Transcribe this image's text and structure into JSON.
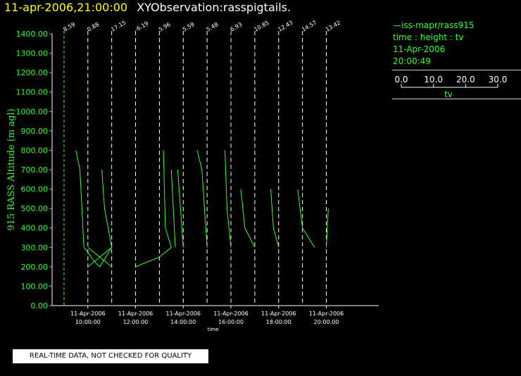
{
  "header": {
    "timestamp": "11-apr-2006,21:00:00",
    "title": "XYObservation:rasspigtails."
  },
  "legend": {
    "line1": "iss-mapr/rass915",
    "line2": "time : height : tv",
    "line3": "11-Apr-2006",
    "line4": "20:00:49",
    "scale_ticks": [
      "0.0",
      "10.0",
      "20.0",
      "30.0"
    ],
    "scale_label": "tv"
  },
  "disclaimer": "REAL-TIME DATA, NOT CHECKED FOR QUALITY",
  "colors": {
    "background": "#000000",
    "trace": "#33ff33",
    "axes": "#ffffff",
    "title_time": "#ffff00"
  },
  "chart_data": {
    "type": "line",
    "ylabel": "915 RASS Altitude (m agl)",
    "xlabel": "time",
    "ylim": [
      0,
      1400
    ],
    "yticks": [
      "0.00",
      "100.00",
      "200.00",
      "300.00",
      "400.00",
      "500.00",
      "600.00",
      "700.00",
      "800.00",
      "900.00",
      "1000.00",
      "1100.00",
      "1200.00",
      "1300.00",
      "1400.00"
    ],
    "xticks": [
      {
        "date": "11-Apr-2006",
        "time": "10:00:00"
      },
      {
        "date": "11-Apr-2006",
        "time": "12:00:00"
      },
      {
        "date": "11-Apr-2006",
        "time": "14:00:00"
      },
      {
        "date": "11-Apr-2006",
        "time": "16:00:00"
      },
      {
        "date": "11-Apr-2006",
        "time": "18:00:00"
      },
      {
        "date": "11-Apr-2006",
        "time": "20:00:00"
      }
    ],
    "profiles": [
      {
        "time": "09:00",
        "label": "8.59"
      },
      {
        "time": "10:00",
        "label": "0.88"
      },
      {
        "time": "11:00",
        "label": "17.15"
      },
      {
        "time": "12:00",
        "label": "-6.19"
      },
      {
        "time": "13:00",
        "label": "5.96"
      },
      {
        "time": "14:00",
        "label": "5.59"
      },
      {
        "time": "15:00",
        "label": "5.48"
      },
      {
        "time": "16:00",
        "label": "6.93"
      },
      {
        "time": "17:00",
        "label": "10.85"
      },
      {
        "time": "18:00",
        "label": "12.43"
      },
      {
        "time": "19:00",
        "label": "14.57"
      },
      {
        "time": "20:00",
        "label": "13.42"
      }
    ],
    "series": [
      {
        "points": [
          [
            "09:30",
            800
          ],
          [
            "09:40",
            700
          ],
          [
            "09:50",
            300
          ],
          [
            "10:00",
            275
          ],
          [
            "10:15",
            230
          ],
          [
            "10:30",
            200
          ],
          [
            "11:00",
            300
          ],
          [
            "10:42",
            500
          ],
          [
            "10:35",
            700
          ]
        ]
      },
      {
        "points": [
          [
            "10:00",
            200
          ],
          [
            "10:30",
            250
          ],
          [
            "11:00",
            300
          ]
        ]
      },
      {
        "points": [
          [
            "10:00",
            300
          ],
          [
            "10:30",
            250
          ],
          [
            "11:00",
            200
          ]
        ]
      },
      {
        "points": [
          [
            "12:00",
            200
          ],
          [
            "13:00",
            250
          ],
          [
            "13:30",
            300
          ],
          [
            "13:15",
            400
          ],
          [
            "13:10",
            800
          ]
        ]
      },
      {
        "points": [
          [
            "13:30",
            700
          ],
          [
            "13:40",
            300
          ]
        ]
      },
      {
        "points": [
          [
            "13:46",
            700
          ],
          [
            "14:00",
            300
          ]
        ]
      },
      {
        "points": [
          [
            "14:35",
            800
          ],
          [
            "14:47",
            700
          ],
          [
            "15:00",
            300
          ]
        ]
      },
      {
        "points": [
          [
            "15:45",
            800
          ],
          [
            "15:50",
            500
          ],
          [
            "16:00",
            300
          ]
        ]
      },
      {
        "points": [
          [
            "16:25",
            600
          ],
          [
            "16:35",
            400
          ],
          [
            "17:00",
            300
          ]
        ]
      },
      {
        "points": [
          [
            "17:40",
            600
          ],
          [
            "17:47",
            400
          ],
          [
            "18:00",
            300
          ]
        ]
      },
      {
        "points": [
          [
            "18:48",
            600
          ],
          [
            "19:00",
            400
          ],
          [
            "19:30",
            300
          ]
        ]
      },
      {
        "points": [
          [
            "20:00",
            300
          ],
          [
            "20:05",
            500
          ]
        ]
      }
    ]
  }
}
